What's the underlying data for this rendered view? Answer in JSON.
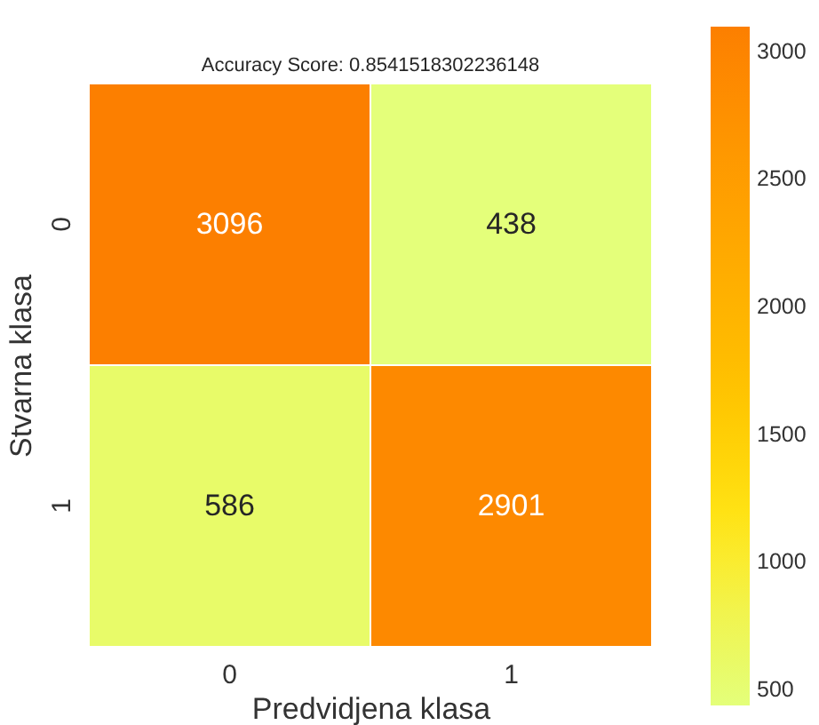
{
  "chart_data": {
    "type": "heatmap",
    "title": "Accuracy Score: 0.8541518302236148",
    "xlabel": "Predvidjena klasa",
    "ylabel": "Stvarna klasa",
    "categories": [
      "0",
      "1"
    ],
    "y_categories": [
      "0",
      "1"
    ],
    "cells": [
      [
        3096,
        438
      ],
      [
        586,
        2901
      ]
    ],
    "clim": [
      438,
      3096
    ],
    "cticks": [
      500,
      1000,
      1500,
      2000,
      2500,
      3000
    ],
    "data_labels": true,
    "grid": false
  }
}
